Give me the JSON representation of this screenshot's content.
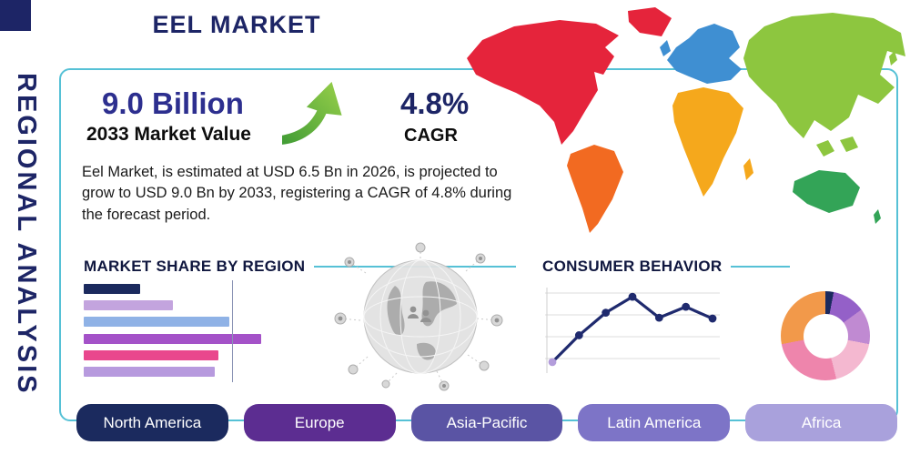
{
  "colors": {
    "accent_teal": "#56c1d6",
    "navy": "#1d2566",
    "stat_value_color": "#2d2f8f",
    "arrow_green_light": "#9bd14a",
    "arrow_green_dark": "#3f9b35"
  },
  "title": "EEL MARKET",
  "sidebar_label": "REGIONAL ANALYSIS",
  "stats": {
    "market_value": "9.0 Billion",
    "market_value_label": "2033 Market Value",
    "cagr_value": "4.8%",
    "cagr_label": "CAGR"
  },
  "description": "Eel Market, is estimated at USD 6.5 Bn in 2026, is projected to grow to USD 9.0 Bn by 2033, registering a CAGR of 4.8% during the forecast period.",
  "sections": {
    "market_share_heading": "MARKET SHARE BY REGION",
    "consumer_behavior_heading": "CONSUMER BEHAVIOR"
  },
  "regions": [
    {
      "label": "North America",
      "color": "#1b2a5e"
    },
    {
      "label": "Europe",
      "color": "#5c2d91"
    },
    {
      "label": "Asia-Pacific",
      "color": "#5a54a4"
    },
    {
      "label": "Latin America",
      "color": "#7d74c7"
    },
    {
      "label": "Africa",
      "color": "#a9a1dc"
    }
  ],
  "map": {
    "colors": {
      "north_america": "#e5243b",
      "greenland": "#e5243b",
      "south_america": "#f26a21",
      "europe": "#3f8fd2",
      "uk": "#3f8fd2",
      "africa": "#f5a81c",
      "madagascar": "#f5a81c",
      "asia": "#8dc63f",
      "se_asia_1": "#8dc63f",
      "se_asia_2": "#8dc63f",
      "japan": "#8dc63f",
      "australia": "#33a457",
      "new_zealand": "#33a457"
    }
  },
  "chart_data": [
    {
      "type": "bar",
      "title": "MARKET SHARE BY REGION",
      "orientation": "horizontal",
      "values": [
        32,
        50,
        82,
        100,
        76,
        74
      ],
      "values_note": "relative bar lengths; no numeric axis labels shown",
      "colors": [
        "#1b2a5e",
        "#c3a4de",
        "#8fb2e6",
        "#a452c8",
        "#e9478d",
        "#b79ade"
      ]
    },
    {
      "type": "line",
      "title": "CONSUMER BEHAVIOR",
      "x": [
        1,
        2,
        3,
        4,
        5,
        6,
        7
      ],
      "y": [
        1.1,
        4.3,
        7.0,
        8.9,
        6.4,
        7.7,
        6.3
      ],
      "ylim": [
        0,
        10
      ],
      "grid": true,
      "line_color": "#1f2a6e",
      "first_point_color": "#b39ddb"
    },
    {
      "type": "pie",
      "donut": true,
      "slices": [
        {
          "value": 3,
          "color": "#1b2a5e"
        },
        {
          "value": 12,
          "color": "#9460c8"
        },
        {
          "value": 13,
          "color": "#c08ad2"
        },
        {
          "value": 18,
          "color": "#f4b8d0"
        },
        {
          "value": 26,
          "color": "#ee85ac"
        },
        {
          "value": 28,
          "color": "#f2994a"
        }
      ]
    }
  ]
}
